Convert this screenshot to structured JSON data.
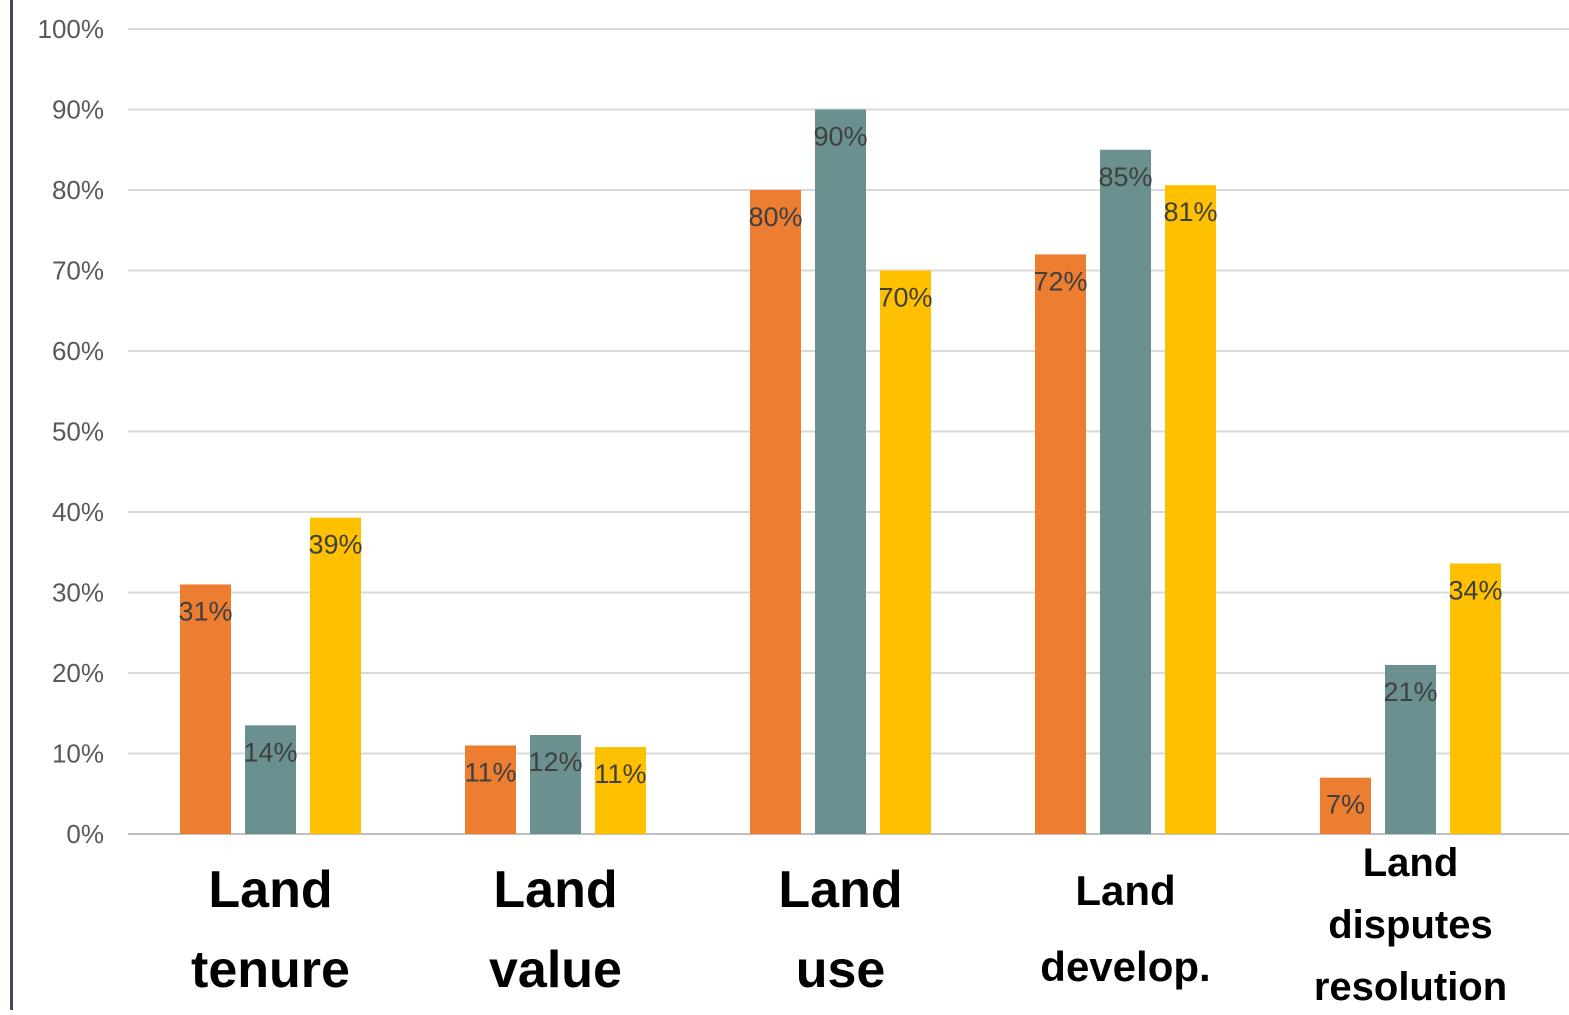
{
  "chart_data": {
    "type": "bar",
    "categories": [
      "Land tenure",
      "Land value",
      "Land use",
      "Land develop.",
      "Land disputes resolution"
    ],
    "category_lines": [
      [
        "Land",
        "tenure"
      ],
      [
        "Land",
        "value"
      ],
      [
        "Land",
        "use"
      ],
      [
        "Land",
        "develop."
      ],
      [
        "Land",
        "disputes",
        "resolution"
      ]
    ],
    "series": [
      {
        "values": [
          31,
          11,
          80,
          72,
          7
        ],
        "labels": [
          "31%",
          "11%",
          "80%",
          "72%",
          "7%"
        ],
        "color": "#ED7D31"
      },
      {
        "values": [
          13.5,
          12.3,
          90,
          85,
          21
        ],
        "labels": [
          "14%",
          "12%",
          "90%",
          "85%",
          "21%"
        ],
        "color": "#6A9090"
      },
      {
        "values": [
          39.3,
          10.8,
          70,
          80.6,
          33.6
        ],
        "labels": [
          "39%",
          "11%",
          "70%",
          "81%",
          "34%"
        ],
        "color": "#FFC000"
      }
    ],
    "yticks": [
      "0%",
      "10%",
      "20%",
      "30%",
      "40%",
      "50%",
      "60%",
      "70%",
      "80%",
      "90%",
      "100%"
    ],
    "ylim": [
      0,
      100
    ],
    "grid": true,
    "legend": "none",
    "title": "",
    "xlabel": "",
    "ylabel": ""
  }
}
